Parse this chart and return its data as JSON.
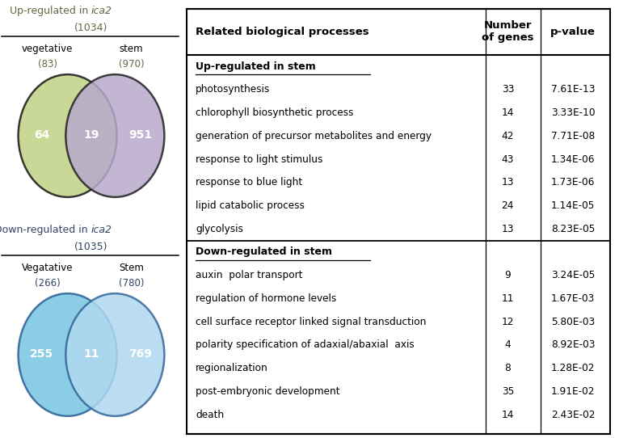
{
  "up_title_normal": "Up-regulated in ",
  "up_title_italic": "ica2",
  "up_total": "(1034)",
  "up_left_label": "vegetative",
  "up_left_count": "(83)",
  "up_right_label": "stem",
  "up_right_count": "(970)",
  "up_left_num": "64",
  "up_overlap_num": "19",
  "up_right_num": "951",
  "up_left_color": "#c5d48c",
  "up_right_color": "#b8a9cc",
  "up_edge_color": "#222222",
  "down_title_normal": "Down-regulated in ",
  "down_title_italic": "ica2",
  "down_total": "(1035)",
  "down_left_label": "Vegatative",
  "down_left_count": "(266)",
  "down_right_label": "Stem",
  "down_right_count": "(780)",
  "down_left_num": "255",
  "down_overlap_num": "11",
  "down_right_num": "769",
  "down_left_color": "#7ec8e3",
  "down_right_color": "#b0d8f0",
  "down_edge_color": "#336699",
  "table_header_col0": "Related biological processes",
  "table_header_col1": "Number\nof genes",
  "table_header_col2": "p-value",
  "up_section_label": "Up-regulated in stem",
  "down_section_label": "Down-regulated in stem",
  "up_rows": [
    [
      "photosynthesis",
      "33",
      "7.61E-13"
    ],
    [
      "chlorophyll biosynthetic process",
      "14",
      "3.33E-10"
    ],
    [
      "generation of precursor metabolites and energy",
      "42",
      "7.71E-08"
    ],
    [
      "response to light stimulus",
      "43",
      "1.34E-06"
    ],
    [
      "response to blue light",
      "13",
      "1.73E-06"
    ],
    [
      "lipid catabolic process",
      "24",
      "1.14E-05"
    ],
    [
      "glycolysis",
      "13",
      "8.23E-05"
    ]
  ],
  "down_rows": [
    [
      "auxin  polar transport",
      "9",
      "3.24E-05"
    ],
    [
      "regulation of hormone levels",
      "11",
      "1.67E-03"
    ],
    [
      "cell surface receptor linked signal transduction",
      "12",
      "5.80E-03"
    ],
    [
      "polarity specification of adaxial/abaxial  axis",
      "4",
      "8.92E-03"
    ],
    [
      "regionalization",
      "8",
      "1.28E-02"
    ],
    [
      "post-embryonic development",
      "35",
      "1.91E-02"
    ],
    [
      "death",
      "14",
      "2.43E-02"
    ]
  ],
  "bg_color": "#ffffff",
  "up_title_color": "#666644",
  "down_title_color": "#334466"
}
